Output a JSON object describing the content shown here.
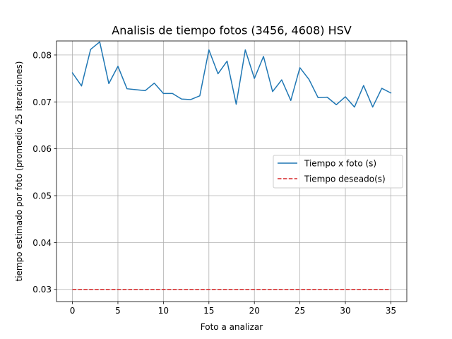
{
  "chart_data": {
    "type": "line",
    "title": "Analisis de tiempo fotos (3456, 4608) HSV",
    "xlabel": "Foto a analizar",
    "ylabel": "tiempo estimado por foto (promedio 25 iteraciones)",
    "xlim": [
      -1.75,
      36.75
    ],
    "ylim": [
      0.0274,
      0.083
    ],
    "xticks": [
      0,
      5,
      10,
      15,
      20,
      25,
      30,
      35
    ],
    "yticks": [
      0.03,
      0.04,
      0.05,
      0.06,
      0.07,
      0.08
    ],
    "ytick_labels": [
      "0.03",
      "0.04",
      "0.05",
      "0.06",
      "0.07",
      "0.08"
    ],
    "grid": true,
    "legend_position": "center-right",
    "series": [
      {
        "name": "Tiempo x foto (s)",
        "color": "#1f77b4",
        "style": "solid",
        "x": [
          0,
          1,
          2,
          3,
          4,
          5,
          6,
          7,
          8,
          9,
          10,
          11,
          12,
          13,
          14,
          15,
          16,
          17,
          18,
          19,
          20,
          21,
          22,
          23,
          24,
          25,
          26,
          27,
          28,
          29,
          30,
          31,
          32,
          33,
          34,
          35
        ],
        "values": [
          0.0762,
          0.0734,
          0.0812,
          0.0828,
          0.0739,
          0.0776,
          0.0728,
          0.0726,
          0.0724,
          0.074,
          0.0718,
          0.0718,
          0.0706,
          0.0705,
          0.0713,
          0.0811,
          0.076,
          0.0787,
          0.0695,
          0.0811,
          0.075,
          0.0797,
          0.0722,
          0.0747,
          0.0703,
          0.0773,
          0.0748,
          0.0709,
          0.071,
          0.0694,
          0.0711,
          0.0689,
          0.0735,
          0.0689,
          0.0729,
          0.0719
        ]
      },
      {
        "name": "Tiempo deseado(s)",
        "color": "#d62728",
        "style": "dashed",
        "x": [
          0,
          35
        ],
        "values": [
          0.03,
          0.03
        ]
      }
    ]
  }
}
